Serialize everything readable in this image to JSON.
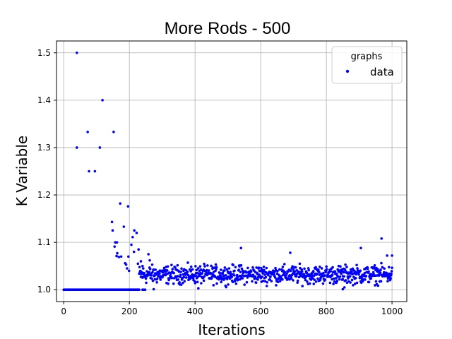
{
  "chart_data": {
    "type": "scatter",
    "title": "More Rods - 500",
    "xlabel": "Iterations",
    "ylabel": "K Variable",
    "xlim": [
      -22,
      1045
    ],
    "ylim": [
      0.975,
      1.525
    ],
    "xticks": [
      0,
      200,
      400,
      600,
      800,
      1000
    ],
    "yticks": [
      1.0,
      1.1,
      1.2,
      1.3,
      1.4,
      1.5
    ],
    "xtick_labels": [
      "0",
      "200",
      "400",
      "600",
      "800",
      "1000"
    ],
    "ytick_labels": [
      "1.0",
      "1.1",
      "1.2",
      "1.3",
      "1.4",
      "1.5"
    ],
    "grid": true,
    "legend": {
      "title": "graphs",
      "placement": "top-right",
      "entries": [
        "data"
      ]
    },
    "series": [
      {
        "name": "data",
        "color": "#0000ff",
        "marker": "dot",
        "points": [
          [
            40,
            1.5
          ],
          [
            118,
            1.4
          ],
          [
            73,
            1.333
          ],
          [
            152,
            1.333
          ],
          [
            40,
            1.3
          ],
          [
            110,
            1.3
          ],
          [
            77,
            1.25
          ],
          [
            95,
            1.25
          ],
          [
            172,
            1.182
          ],
          [
            196,
            1.176
          ],
          [
            147,
            1.143
          ],
          [
            183,
            1.133
          ],
          [
            149,
            1.125
          ],
          [
            215,
            1.125
          ],
          [
            222,
            1.12
          ],
          [
            210,
            1.111
          ],
          [
            157,
            1.1
          ],
          [
            162,
            1.1
          ],
          [
            206,
            1.095
          ],
          [
            155,
            1.091
          ],
          [
            163,
            1.077
          ],
          [
            161,
            1.071
          ],
          [
            168,
            1.069
          ],
          [
            175,
            1.07
          ],
          [
            197,
            1.07
          ],
          [
            187,
            1.056
          ],
          [
            190,
            1.053
          ],
          [
            193,
            1.045
          ],
          [
            199,
            1.04
          ],
          [
            214,
            1.08
          ],
          [
            228,
            1.085
          ],
          [
            226,
            1.055
          ],
          [
            235,
            1.06
          ],
          [
            240,
            1.05
          ],
          [
            258,
            1.075
          ],
          [
            262,
            1.062
          ],
          [
            540,
            1.088
          ],
          [
            690,
            1.078
          ],
          [
            905,
            1.088
          ],
          [
            968,
            1.108
          ],
          [
            985,
            1.072
          ],
          [
            1000,
            1.072
          ],
          [
            410,
            1.003
          ],
          [
            850,
            1.001
          ],
          [
            855,
            1.005
          ],
          [
            240,
            1.0
          ],
          [
            244,
            1.0
          ],
          [
            248,
            1.0
          ],
          [
            274,
            1.001
          ],
          [
            225,
            1.0
          ]
        ],
        "segments": [
          {
            "x_range": [
              0,
              230
            ],
            "y_constant": 1.0,
            "count": 120,
            "description": "flat run"
          },
          {
            "x_range": [
              230,
              1000
            ],
            "y_mean": 1.032,
            "y_spread": 0.028,
            "count": 760,
            "description": "noisy band"
          }
        ]
      }
    ]
  }
}
